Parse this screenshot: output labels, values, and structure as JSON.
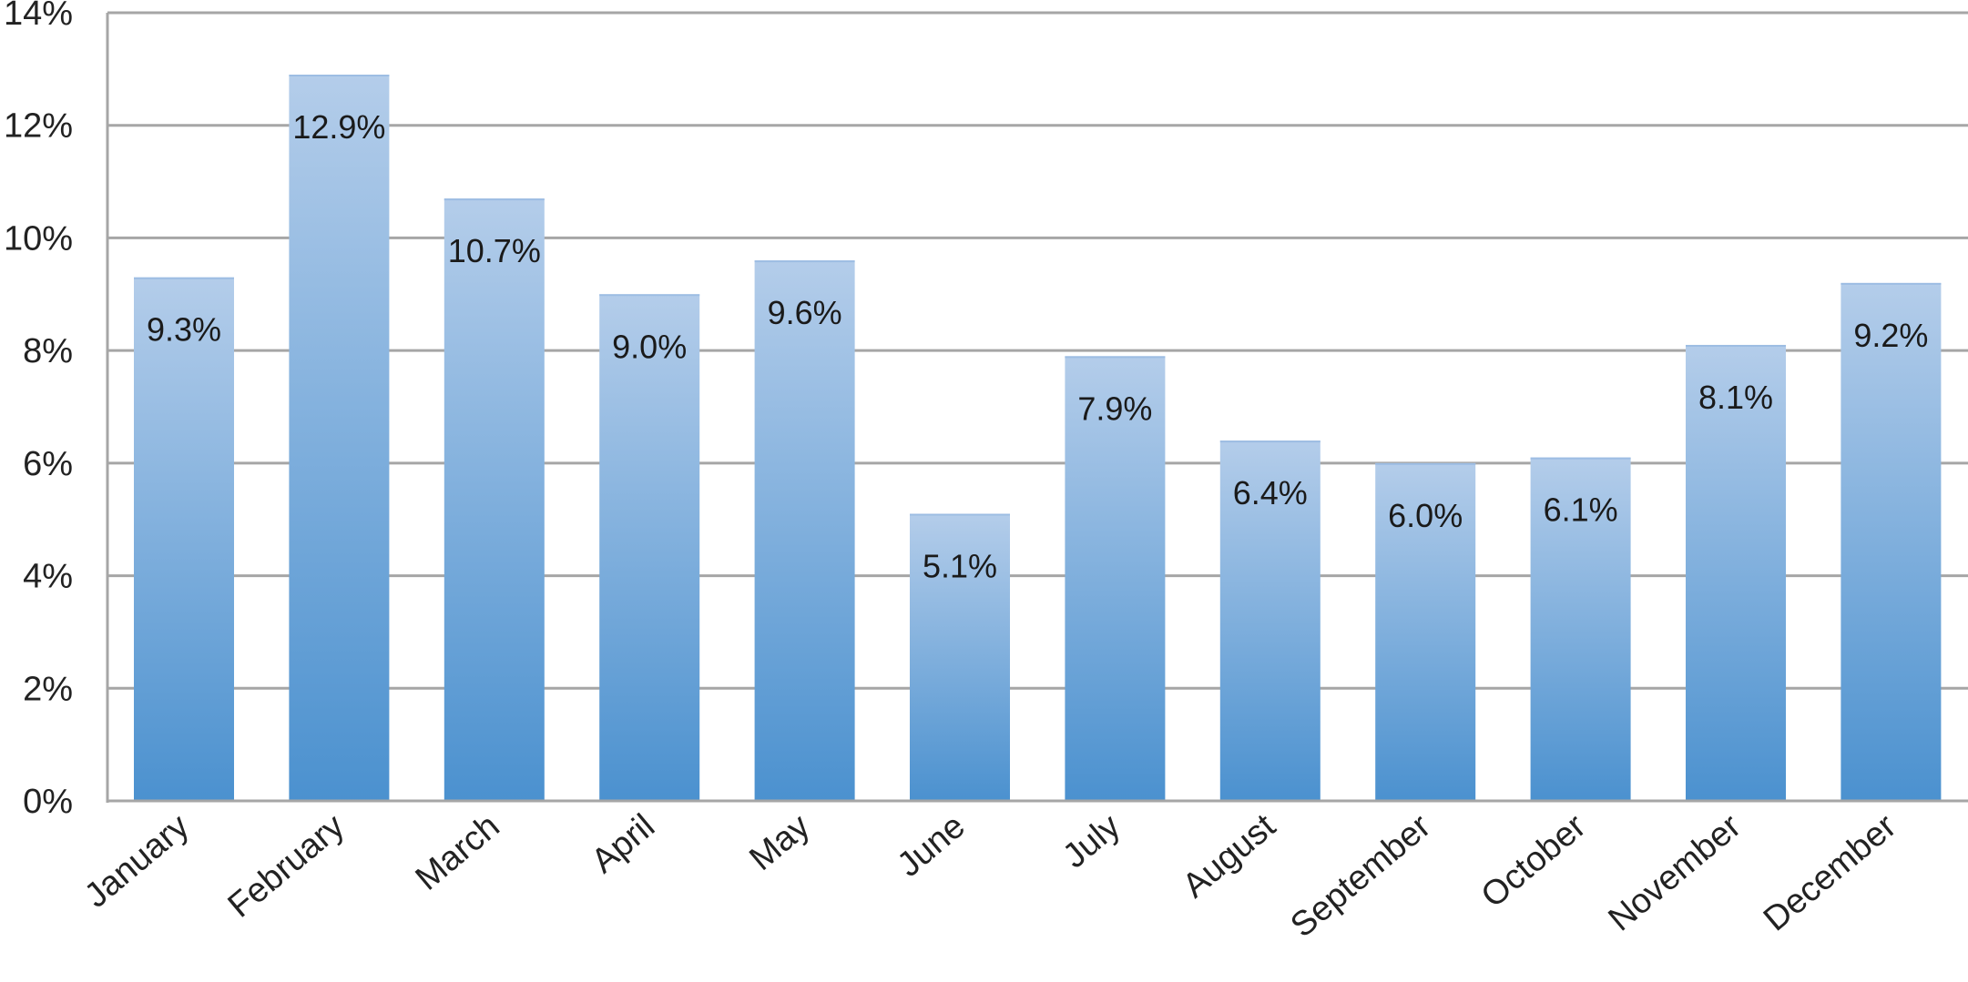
{
  "chart_data": {
    "type": "bar",
    "title": "",
    "xlabel": "",
    "ylabel": "",
    "categories": [
      "January",
      "February",
      "March",
      "April",
      "May",
      "June",
      "July",
      "August",
      "September",
      "October",
      "November",
      "December"
    ],
    "values": [
      9.3,
      12.9,
      10.7,
      9.0,
      9.6,
      5.1,
      7.9,
      6.4,
      6.0,
      6.1,
      8.1,
      9.2
    ],
    "data_labels": [
      "9.3%",
      "12.9%",
      "10.7%",
      "9.0%",
      "9.6%",
      "5.1%",
      "7.9%",
      "6.4%",
      "6.0%",
      "6.1%",
      "8.1%",
      "9.2%"
    ],
    "ylim": [
      0,
      14
    ],
    "yticks": [
      0,
      2,
      4,
      6,
      8,
      10,
      12,
      14
    ],
    "ytick_labels": [
      "0%",
      "2%",
      "4%",
      "6%",
      "8%",
      "10%",
      "12%",
      "14%"
    ],
    "grid": true,
    "legend": "none",
    "colors": {
      "bar_top": "#b4cdea",
      "bar_bottom": "#4b91cf",
      "grid": "#a6a6a6",
      "axis": "#a6a6a6"
    }
  }
}
